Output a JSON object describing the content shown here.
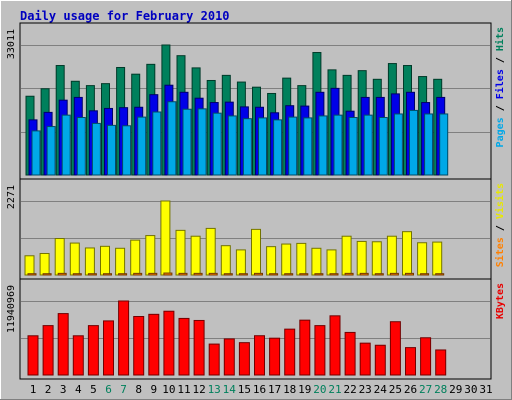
{
  "chart_data": {
    "type": "bar",
    "title": "Daily usage for February 2010",
    "categories": [
      "1",
      "2",
      "3",
      "4",
      "5",
      "6",
      "7",
      "8",
      "9",
      "10",
      "11",
      "12",
      "13",
      "14",
      "15",
      "16",
      "17",
      "18",
      "19",
      "20",
      "21",
      "22",
      "23",
      "24",
      "25",
      "26",
      "27",
      "28",
      "29",
      "30",
      "31"
    ],
    "weekend_days": [
      "6",
      "7",
      "13",
      "14",
      "20",
      "21",
      "27",
      "28"
    ],
    "panels": [
      {
        "id": "hits-files-pages",
        "max_label": "33011",
        "ylim": [
          0,
          33011
        ],
        "right_labels": [
          {
            "text": "Pages",
            "color": "#00a8e8"
          },
          {
            "text": " / ",
            "color": "#000000"
          },
          {
            "text": "Files",
            "color": "#0000e8"
          },
          {
            "text": " / ",
            "color": "#000000"
          },
          {
            "text": "Hits",
            "color": "#00805c"
          }
        ],
        "series": [
          {
            "name": "Hits",
            "color": "#00805c",
            "values": [
              20000,
              21900,
              27800,
              23800,
              22700,
              23200,
              27300,
              25600,
              28100,
              33011,
              30300,
              27200,
              24000,
              25300,
              23600,
              22300,
              20700,
              24600,
              22700,
              31100,
              26700,
              25300,
              26500,
              24300,
              28300,
              27800,
              25000,
              24300,
              null,
              null,
              null
            ]
          },
          {
            "name": "Files",
            "color": "#0000e8",
            "values": [
              14000,
              15900,
              19000,
              19700,
              16300,
              16900,
              17100,
              17200,
              20400,
              22800,
              21000,
              19500,
              18400,
              18500,
              17300,
              17200,
              15800,
              17600,
              17500,
              21000,
              22000,
              16200,
              19700,
              19700,
              20600,
              21000,
              18400,
              19700,
              null,
              null,
              null
            ]
          },
          {
            "name": "Pages",
            "color": "#00a8e8",
            "values": [
              11200,
              12300,
              15200,
              14600,
              13100,
              12600,
              12500,
              14700,
              16000,
              18600,
              16700,
              16800,
              15700,
              15000,
              14300,
              14500,
              14000,
              14700,
              14500,
              15000,
              15200,
              14600,
              15200,
              14600,
              15500,
              16400,
              15500,
              15500,
              null,
              null,
              null
            ]
          }
        ]
      },
      {
        "id": "visits-sites",
        "max_label": "2271",
        "ylim": [
          0,
          2271
        ],
        "right_labels": [
          {
            "text": "Sites",
            "color": "#ff8000"
          },
          {
            "text": " / ",
            "color": "#000000"
          },
          {
            "text": "Visits",
            "color": "#e8e800"
          }
        ],
        "series": [
          {
            "name": "Visits",
            "color": "#ffff00",
            "values": [
              590,
              660,
              1120,
              980,
              830,
              880,
              820,
              1070,
              1210,
              2271,
              1370,
              1190,
              1430,
              900,
              770,
              1400,
              870,
              950,
              970,
              820,
              770,
              1190,
              1030,
              1020,
              1190,
              1330,
              990,
              1010,
              null,
              null,
              null
            ]
          },
          {
            "name": "Sites",
            "color": "#ff8000",
            "values": [
              40,
              40,
              50,
              40,
              40,
              40,
              40,
              50,
              50,
              60,
              50,
              50,
              50,
              40,
              40,
              50,
              40,
              40,
              40,
              40,
              40,
              50,
              50,
              40,
              50,
              50,
              40,
              40,
              null,
              null,
              null
            ]
          }
        ]
      },
      {
        "id": "kbytes",
        "max_label": "11940969",
        "ylim": [
          0,
          11940969
        ],
        "right_labels": [
          {
            "text": "KBytes",
            "color": "#e80000"
          }
        ],
        "series": [
          {
            "name": "KBytes",
            "color": "#ff0000",
            "values": [
              6330000,
              7970000,
              9910000,
              6330000,
              7970000,
              8730000,
              11940969,
              9440000,
              9790000,
              10290000,
              9130000,
              8800000,
              4990000,
              5820000,
              5220000,
              6340000,
              5940000,
              7400000,
              8850000,
              7970000,
              9550000,
              6870000,
              5140000,
              4800000,
              8600000,
              4420000,
              6010000,
              4040000,
              null,
              null,
              null
            ]
          }
        ]
      }
    ]
  }
}
